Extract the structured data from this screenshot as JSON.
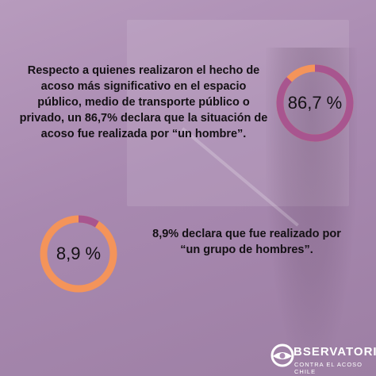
{
  "stat1": {
    "text": "Respecto a quienes realizaron el hecho de acoso más significativo en el espacio público, medio de transporte público o privado, un 86,7% declara que la situación de acoso fue realizada por “un hombre”.",
    "value_label": "86,7 %",
    "percent": 86.7
  },
  "stat2": {
    "text": "8,9% declara que fue realizado por “un grupo de hombres”.",
    "value_label": "8,9 %",
    "percent": 8.9
  },
  "logo": {
    "title": "BSERVATORIO",
    "subtitle": "CONTRA EL ACOSO CHILE",
    "icon": "eye-icon"
  },
  "colors": {
    "background": "#a889b0",
    "ring_primary": "#a8558f",
    "ring_secondary": "#f4945a",
    "text": "#141014",
    "logo": "#ffffff"
  }
}
